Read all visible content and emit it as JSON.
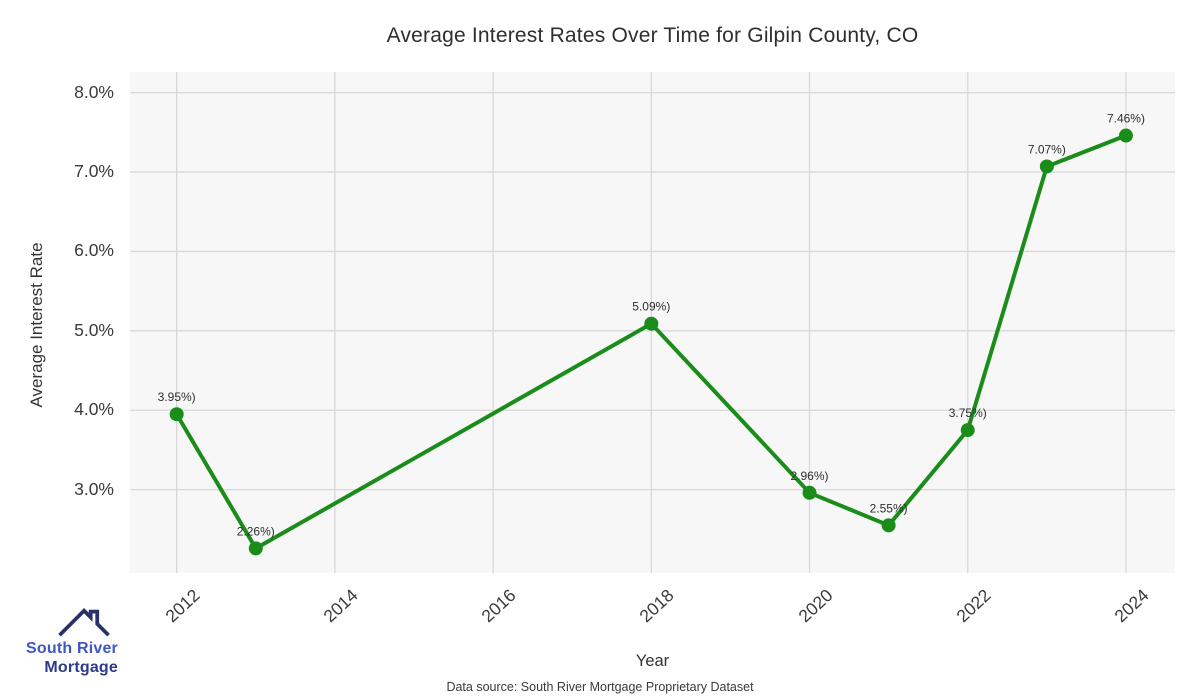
{
  "page": {
    "footer_text": "Data source: South River Mortgage Proprietary Dataset"
  },
  "logo": {
    "line1": "South River",
    "line2": "Mortgage",
    "line1_color": "#4056c4",
    "line2_color": "#2b3a8a",
    "roof_color": "#2a3166"
  },
  "chart_data": {
    "type": "line",
    "title": "Average Interest Rates Over Time for Gilpin County, CO",
    "xlabel": "Year",
    "ylabel": "Average Interest Rate",
    "x": [
      2012,
      2013,
      2018,
      2020,
      2021,
      2022,
      2023,
      2024
    ],
    "y": [
      3.95,
      2.26,
      5.09,
      2.96,
      2.55,
      3.75,
      7.07,
      7.46
    ],
    "point_labels": [
      "3.95%)",
      "2.26%)",
      "5.09%)",
      "2.96%)",
      "2.55%)",
      "3.75%)",
      "7.07%)",
      "7.46%)"
    ],
    "x_tick_values": [
      2012,
      2014,
      2016,
      2018,
      2020,
      2022,
      2024
    ],
    "x_tick_labels": [
      "2012",
      "2014",
      "2016",
      "2018",
      "2020",
      "2022",
      "2024"
    ],
    "y_tick_values": [
      8.0,
      7.0,
      6.0,
      5.0,
      4.0,
      3.0
    ],
    "y_tick_labels": [
      "8.0%",
      "7.0%",
      "6.0%",
      "5.0%",
      "4.0%",
      "3.0%"
    ],
    "xlim": [
      2011.41,
      2024.62
    ],
    "ylim": [
      1.95,
      8.26
    ],
    "grid": true,
    "legend": "none",
    "line_color": "#1a8c1a",
    "marker_size": 7,
    "line_width": 4,
    "plot_bg": "#f7f7f7",
    "grid_color": "#d8d8d8",
    "label_color": "#2f2f2f"
  }
}
